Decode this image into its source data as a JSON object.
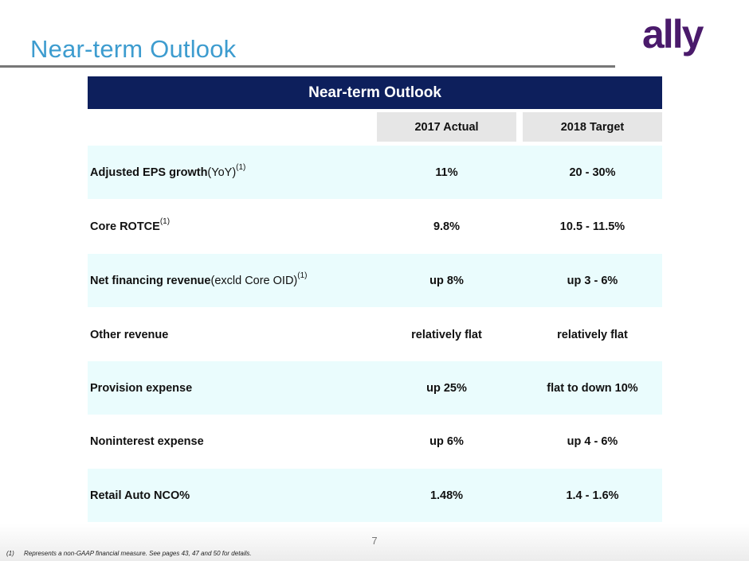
{
  "slide": {
    "title": "Near-term Outlook",
    "page_number": "7"
  },
  "logo": {
    "text": "ally",
    "color": "#4a1a6b"
  },
  "table": {
    "header": "Near-term Outlook",
    "columns": [
      "2017 Actual",
      "2018 Target"
    ],
    "rows": [
      {
        "label_bold": "Adjusted EPS growth",
        "label_plain": " (YoY)",
        "sup": "(1)",
        "actual": "11%",
        "target": "20 - 30%"
      },
      {
        "label_bold": "Core ROTCE",
        "label_plain": "",
        "sup": "(1)",
        "actual": "9.8%",
        "target": "10.5 - 11.5%"
      },
      {
        "label_bold": "Net financing revenue",
        "label_plain": " (excld Core OID)",
        "sup": "(1)",
        "actual": "up 8%",
        "target": "up 3 - 6%"
      },
      {
        "label_bold": "Other revenue",
        "label_plain": "",
        "sup": "",
        "actual": "relatively flat",
        "target": "relatively flat"
      },
      {
        "label_bold": "Provision expense",
        "label_plain": "",
        "sup": "",
        "actual": "up 25%",
        "target": "flat to down 10%"
      },
      {
        "label_bold": "Noninterest expense",
        "label_plain": "",
        "sup": "",
        "actual": "up 6%",
        "target": "up 4 - 6%"
      },
      {
        "label_bold": "Retail Auto NCO%",
        "label_plain": "",
        "sup": "",
        "actual": "1.48%",
        "target": "1.4 - 1.6%"
      }
    ]
  },
  "footnote": {
    "mark": "(1)",
    "text": "Represents a non-GAAP financial measure. See pages 43, 47 and 50 for details."
  },
  "colors": {
    "title": "#3d9ccf",
    "table_header_bg": "#0d1f5c",
    "row_shade": "#eafcfd",
    "column_header_bg": "#e6e6e6"
  }
}
